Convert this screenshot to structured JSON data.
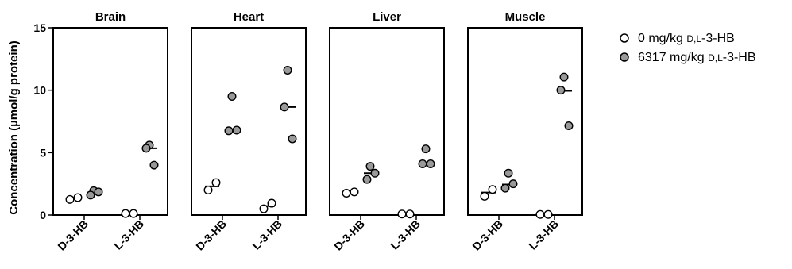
{
  "chart_data": {
    "type": "scatter",
    "ylabel": "Concentration (µmol/g protein)",
    "ylim": [
      0,
      15
    ],
    "yticks": [
      0,
      5,
      10,
      15
    ],
    "categories": [
      "D-3-HB",
      "L-3-HB"
    ],
    "legend": {
      "placement": "right",
      "entries": [
        {
          "label_pre": "0 mg/kg ",
          "label_sc": "D,L",
          "label_post": "-3-HB",
          "fill": "#ffffff"
        },
        {
          "label_pre": "6317 mg/kg ",
          "label_sc": "D,L",
          "label_post": "-3-HB",
          "fill": "#999999"
        }
      ]
    },
    "series": [
      {
        "fill": "#ffffff"
      },
      {
        "fill": "#999999"
      }
    ],
    "panels": [
      {
        "title": "Brain",
        "groups": {
          "D-3-HB": {
            "0": {
              "points": [
                1.25,
                1.4
              ],
              "mean": 1.32
            },
            "1": {
              "points": [
                1.95,
                1.6,
                1.85
              ],
              "mean": 1.8
            }
          },
          "L-3-HB": {
            "0": {
              "points": [
                0.12,
                0.12
              ],
              "mean": 0.12
            },
            "1": {
              "points": [
                5.6,
                5.35,
                4.0
              ],
              "mean": 5.35
            }
          }
        }
      },
      {
        "title": "Heart",
        "groups": {
          "D-3-HB": {
            "0": {
              "points": [
                2.0,
                2.6
              ],
              "mean": 2.3
            },
            "1": {
              "points": [
                9.5,
                6.75,
                6.8
              ],
              "mean": 6.85
            }
          },
          "L-3-HB": {
            "0": {
              "points": [
                0.5,
                0.95
              ],
              "mean": 0.72
            },
            "1": {
              "points": [
                11.6,
                8.65,
                6.1
              ],
              "mean": 8.65
            }
          }
        }
      },
      {
        "title": "Liver",
        "groups": {
          "D-3-HB": {
            "0": {
              "points": [
                1.75,
                1.85
              ],
              "mean": 1.8
            },
            "1": {
              "points": [
                3.9,
                2.85,
                3.35
              ],
              "mean": 3.35
            }
          },
          "L-3-HB": {
            "0": {
              "points": [
                0.08,
                0.08
              ],
              "mean": 0.08
            },
            "1": {
              "points": [
                5.3,
                4.1,
                4.1
              ],
              "mean": 4.15
            }
          }
        }
      },
      {
        "title": "Muscle",
        "groups": {
          "D-3-HB": {
            "0": {
              "points": [
                1.5,
                2.05
              ],
              "mean": 1.8
            },
            "1": {
              "points": [
                3.35,
                2.15,
                2.5
              ],
              "mean": 2.45
            }
          },
          "L-3-HB": {
            "0": {
              "points": [
                0.05,
                0.05
              ],
              "mean": 0.05
            },
            "1": {
              "points": [
                11.05,
                10.0,
                7.15
              ],
              "mean": 9.95
            }
          }
        }
      }
    ]
  }
}
